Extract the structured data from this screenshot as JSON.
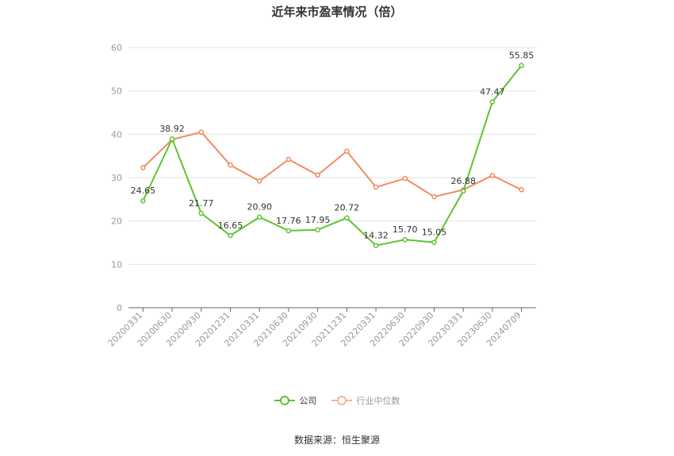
{
  "chart_data": {
    "type": "line",
    "title": "近年来市盈率情况（倍）",
    "categories": [
      "20200331",
      "20200630",
      "20200930",
      "20201231",
      "20210331",
      "20210630",
      "20210930",
      "20211231",
      "20220331",
      "20220630",
      "20220930",
      "20230331",
      "20230630",
      "20240709"
    ],
    "ylim": [
      0,
      60
    ],
    "yticks": [
      0,
      10,
      20,
      30,
      40,
      50,
      60
    ],
    "grid": true,
    "legend_position": "bottom",
    "series": [
      {
        "name": "公司",
        "color": "#5cc42e",
        "values": [
          24.65,
          38.92,
          21.77,
          16.65,
          20.9,
          17.76,
          17.95,
          20.72,
          14.32,
          15.7,
          15.05,
          26.88,
          47.47,
          55.85
        ],
        "labels": [
          "24.65",
          "38.92",
          "21.77",
          "16.65",
          "20.90",
          "17.76",
          "17.95",
          "20.72",
          "14.32",
          "15.70",
          "15.05",
          "26.88",
          "47.47",
          "55.85"
        ]
      },
      {
        "name": "行业中位数",
        "color": "#f08c5e",
        "values": [
          32.3,
          38.8,
          40.5,
          32.9,
          29.2,
          34.2,
          30.6,
          36.1,
          27.8,
          29.8,
          25.6,
          27.2,
          30.5,
          27.2
        ]
      }
    ]
  },
  "source_text": "数据来源：恒生聚源"
}
